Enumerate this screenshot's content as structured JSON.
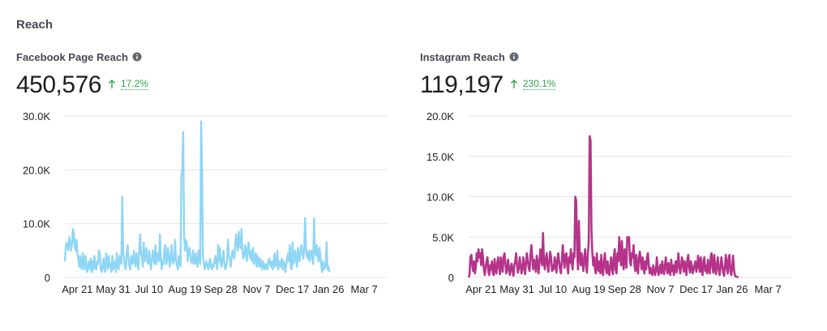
{
  "section_title": "Reach",
  "colors": {
    "facebook": "#8fd6f4",
    "instagram": "#b5348a",
    "trend_up": "#31a24c",
    "grid": "#e4e6eb"
  },
  "icons": {
    "info": "info-icon",
    "trend": "arrow-up-icon"
  },
  "chart_data": [
    {
      "type": "line",
      "title": "Facebook Page Reach",
      "total": "450,576",
      "change": "17.2%",
      "ylim": [
        0,
        30000
      ],
      "y_tick_labels": [
        "0",
        "10.0K",
        "20.0K",
        "30.0K"
      ],
      "y_tick_values": [
        0,
        10000,
        20000,
        30000
      ],
      "x_tick_labels": [
        "Apr 21",
        "May 31",
        "Jul 10",
        "Aug 19",
        "Sep 28",
        "Nov 7",
        "Dec 17",
        "Jan 26",
        "Mar 7"
      ],
      "x_tick_index": [
        13,
        53,
        93,
        133,
        173,
        213,
        253,
        293,
        333
      ],
      "x_range": [
        0,
        360
      ],
      "series": [
        {
          "values": [
            3000,
            5500,
            6500,
            6000,
            5000,
            7500,
            6500,
            5000,
            6000,
            9000,
            8000,
            6000,
            5000,
            7000,
            4500,
            3500,
            2000,
            4000,
            2000,
            1500,
            4500,
            3000,
            1500,
            4000,
            2000,
            1000,
            2500,
            3000,
            1500,
            3500,
            1000,
            3000,
            1500,
            4000,
            2000,
            1500,
            3000,
            2500,
            5000,
            4500,
            1500,
            1000,
            2000,
            3500,
            1500,
            1000,
            4500,
            3000,
            1500,
            4000,
            2000,
            2500,
            1000,
            4000,
            1500,
            2500,
            3000,
            1000,
            4500,
            2000,
            1500,
            4000,
            3000,
            2500,
            15000,
            5000,
            3500,
            2000,
            1500,
            4500,
            6000,
            3500,
            2000,
            1500,
            4000,
            3000,
            2500,
            5000,
            3500,
            2000,
            4500,
            3000,
            1500,
            5000,
            8000,
            4500,
            3500,
            2000,
            6500,
            3000,
            4500,
            5500,
            3000,
            2500,
            5000,
            3500,
            1500,
            3000,
            5000,
            3500,
            2500,
            6000,
            2500,
            4500,
            4000,
            3000,
            8000,
            4000,
            1500,
            3000,
            2500,
            5000,
            6000,
            2500,
            3000,
            5500,
            4000,
            2000,
            3000,
            6000,
            3500,
            2500,
            3500,
            7000,
            3000,
            2500,
            1500,
            4000,
            3500,
            2000,
            19000,
            20000,
            27000,
            8000,
            5000,
            7000,
            6500,
            3000,
            5000,
            5500,
            4000,
            3000,
            2500,
            5000,
            3500,
            2500,
            4500,
            3000,
            2000,
            5000,
            3500,
            2500,
            29000,
            20000,
            4000,
            2500,
            1500,
            2500,
            3000,
            2000,
            1500,
            2500,
            3500,
            2000,
            1500,
            2500,
            2000,
            3000,
            4000,
            2500,
            1500,
            6000,
            3000,
            5500,
            2500,
            2000,
            3500,
            5000,
            2500,
            1500,
            2000,
            3000,
            7000,
            4000,
            3500,
            2000,
            3500,
            5000,
            4500,
            3500,
            6000,
            8000,
            6000,
            5000,
            8500,
            6000,
            5500,
            9000,
            5000,
            3500,
            4000,
            6000,
            5000,
            3000,
            5500,
            6500,
            4000,
            3500,
            5000,
            3000,
            5500,
            2500,
            3500,
            4500,
            2000,
            4000,
            3000,
            2000,
            3500,
            2500,
            1500,
            3000,
            2000,
            1500,
            2500,
            2000,
            1500,
            3000,
            3500,
            2500,
            2000,
            3000,
            1500,
            3000,
            4500,
            2000,
            2500,
            5000,
            1500,
            3000,
            2500,
            2000,
            3500,
            1500,
            3000,
            2500,
            1000,
            2500,
            3500,
            4500,
            3000,
            6000,
            2000,
            1500,
            6500,
            2500,
            4000,
            5000,
            3000,
            2000,
            5500,
            4000,
            3000,
            5500,
            6000,
            4500,
            3500,
            5000,
            11000,
            5500,
            4000,
            3500,
            5000,
            3000,
            4500,
            5000,
            3500,
            2500,
            11000,
            5000,
            4000,
            6000,
            4500,
            3000,
            5500,
            4000,
            2500,
            1000,
            3000,
            1500,
            2500,
            2000,
            6500,
            1500,
            2000,
            1000
          ]
        }
      ]
    },
    {
      "type": "line",
      "title": "Instagram Reach",
      "total": "119,197",
      "change": "230.1%",
      "ylim": [
        0,
        20000
      ],
      "y_tick_labels": [
        "0",
        "5.0K",
        "10.0K",
        "15.0K",
        "20.0K"
      ],
      "y_tick_values": [
        0,
        5000,
        10000,
        15000,
        20000
      ],
      "x_tick_labels": [
        "Apr 21",
        "May 31",
        "Jul 10",
        "Aug 19",
        "Sep 28",
        "Nov 7",
        "Dec 17",
        "Jan 26",
        "Mar 7"
      ],
      "x_tick_index": [
        13,
        53,
        93,
        133,
        173,
        213,
        253,
        293,
        333
      ],
      "x_range": [
        0,
        360
      ],
      "series": [
        {
          "values": [
            0,
            300,
            2500,
            2800,
            1500,
            800,
            2000,
            500,
            1200,
            3000,
            2000,
            3500,
            2500,
            3000,
            1500,
            3500,
            2500,
            1000,
            300,
            1200,
            2000,
            2500,
            700,
            300,
            1500,
            1000,
            2000,
            500,
            300,
            2300,
            1000,
            500,
            1800,
            2500,
            1200,
            400,
            2500,
            1500,
            700,
            2500,
            3000,
            1800,
            500,
            900,
            2200,
            1200,
            300,
            1200,
            1700,
            800,
            200,
            1500,
            2000,
            3000,
            1500,
            600,
            1200,
            2500,
            1500,
            500,
            1000,
            2500,
            1500,
            400,
            1800,
            3000,
            2000,
            1200,
            800,
            2800,
            4000,
            2500,
            1000,
            2200,
            1500,
            700,
            2700,
            1800,
            500,
            1800,
            3500,
            2500,
            1500,
            5500,
            2000,
            1000,
            2200,
            3000,
            1500,
            700,
            2000,
            3200,
            2500,
            800,
            1500,
            1000,
            2500,
            1800,
            600,
            2200,
            3000,
            2000,
            1000,
            500,
            2000,
            4000,
            2500,
            1200,
            2800,
            3000,
            1500,
            500,
            2500,
            1800,
            3500,
            2000,
            1000,
            3000,
            2500,
            10000,
            9500,
            3500,
            1000,
            7000,
            2500,
            1500,
            3000,
            2000,
            800,
            2500,
            3500,
            1500,
            600,
            2800,
            4500,
            17500,
            17000,
            6000,
            3000,
            1500,
            2500,
            1000,
            500,
            3000,
            1200,
            800,
            2000,
            500,
            2800,
            1000,
            300,
            2000,
            3000,
            1200,
            500,
            2000,
            800,
            300,
            1500,
            2500,
            1000,
            400,
            2500,
            3500,
            1000,
            500,
            3000,
            2000,
            5000,
            3000,
            1500,
            4500,
            2000,
            1000,
            3500,
            2500,
            1200,
            5000,
            4500,
            5000,
            2000,
            1500,
            3000,
            2500,
            4000,
            1500,
            800,
            2800,
            1200,
            500,
            2500,
            3200,
            2000,
            1000,
            2500,
            1500,
            500,
            2000,
            1000,
            2500,
            3000,
            1500,
            500,
            1200,
            600,
            300,
            1500,
            800,
            300,
            1000,
            2500,
            800,
            300,
            1200,
            1600,
            500,
            2000,
            1000,
            400,
            1500,
            2500,
            1000,
            500,
            1800,
            900,
            300,
            2200,
            800,
            1500,
            300,
            1200,
            2000,
            600,
            1500,
            3000,
            1500,
            500,
            1200,
            2500,
            1800,
            700,
            2000,
            1200,
            300,
            2200,
            2800,
            1200,
            600,
            2000,
            1500,
            500,
            1000,
            1500,
            2000,
            700,
            1200,
            2700,
            1500,
            700,
            2500,
            1000,
            300,
            2000,
            2500,
            800,
            1500,
            500,
            2200,
            1000,
            500,
            2500,
            3000,
            1200,
            600,
            2800,
            1200,
            400,
            1600,
            2500,
            1000,
            300,
            1300,
            2500,
            1500,
            600,
            200,
            1500,
            2800,
            1200,
            500,
            2300,
            2800,
            800,
            300,
            1200,
            2700,
            1000,
            300,
            100,
            100,
            50,
            0
          ]
        }
      ]
    }
  ]
}
